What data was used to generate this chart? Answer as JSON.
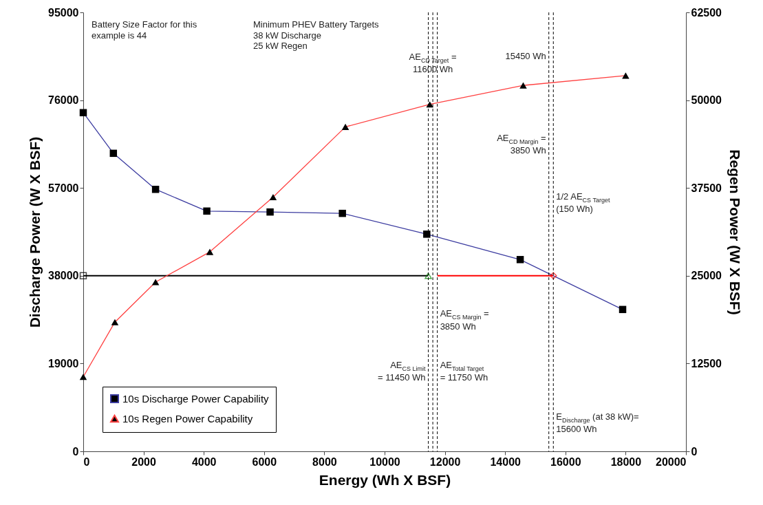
{
  "chart_data": {
    "type": "line",
    "xlabel": "Energy (Wh X BSF)",
    "ylabel": "Discharge Power (W X BSF)",
    "y2label": "Regen Power (W X BSF)",
    "xlim": [
      0,
      20000
    ],
    "xticks": [
      0,
      2000,
      4000,
      6000,
      8000,
      10000,
      12000,
      14000,
      16000,
      18000,
      20000
    ],
    "ylim": [
      0,
      95000
    ],
    "yticks": [
      0,
      19000,
      38000,
      57000,
      76000,
      95000
    ],
    "y2lim": [
      0,
      62500
    ],
    "y2ticks": [
      0,
      12500,
      25000,
      37500,
      50000,
      62500
    ],
    "grid": false,
    "legend": "bottom left",
    "series": [
      {
        "name": "10s Discharge Power Capability",
        "color": "#3c3ca0",
        "marker": "square",
        "x": [
          0,
          1000,
          2400,
          4100,
          6200,
          8600,
          11400,
          14500,
          17900
        ],
        "values": [
          73300,
          64500,
          56700,
          52000,
          51800,
          51500,
          47000,
          41500,
          30700
        ]
      },
      {
        "name": "10s Regen Power Capability",
        "color": "#ff4040",
        "marker": "triangle",
        "axis": "y2",
        "x": [
          0,
          1050,
          2400,
          4200,
          6300,
          8700,
          11500,
          14600,
          18000
        ],
        "values": [
          10600,
          18400,
          24100,
          28400,
          36200,
          46200,
          49400,
          52100,
          53500
        ]
      },
      {
        "type": "line",
        "color": "#000000",
        "marker": "none",
        "x": [
          0,
          11450
        ],
        "values": [
          38000,
          38000
        ]
      },
      {
        "type": "line",
        "color": "#ff0000",
        "marker": "none",
        "x": [
          11750,
          15600
        ],
        "values": [
          38000,
          38000
        ]
      },
      {
        "type": "scatter",
        "color": "#000000",
        "marker": "square",
        "x": [
          0
        ],
        "values": [
          38000
        ]
      },
      {
        "type": "scatter",
        "color": "#008000",
        "marker": "triangle",
        "x": [
          11450
        ],
        "values": [
          38000
        ]
      },
      {
        "type": "scatter",
        "color": "#ff0000",
        "marker": "diamond",
        "x": [
          15600
        ],
        "values": [
          38000
        ]
      }
    ],
    "ref_lines": [
      {
        "axis": "x",
        "value": 11450,
        "color": "#000000",
        "line_style": "dashed"
      },
      {
        "axis": "x",
        "value": 11600,
        "color": "#000000",
        "line_style": "dashed"
      },
      {
        "axis": "x",
        "value": 11750,
        "color": "#000000",
        "line_style": "dashed"
      },
      {
        "axis": "x",
        "value": 15450,
        "color": "#000000",
        "line_style": "dashed"
      },
      {
        "axis": "x",
        "value": 15600,
        "color": "#000000",
        "line_style": "dashed"
      }
    ],
    "annotations": [
      "Battery Size Factor for this\nexample is 44",
      "Minimum PHEV Battery Targets\n38 kW Discharge\n25 kW Regen",
      {
        "text": "AE$_{CD Target}$ =\n11600 Wh",
        "x": 11600,
        "y": 84000
      },
      {
        "text": "15450 Wh",
        "x": 15450,
        "y": 85500
      },
      {
        "text": "AE$_{CD Margin}$ =\n3850 Wh",
        "x": 15450,
        "y": 66400
      },
      {
        "text": "1/2 AE$_{CS Target}$\n(150 Wh)",
        "x": 15600,
        "y": 53800
      },
      {
        "text": "AE$_{CS Margin}$ =\n3850 Wh",
        "x": 11750,
        "y": 28400
      },
      {
        "text": "AE$_{CS Limit}$\n= 11450 Wh",
        "x": 11450,
        "y": 17300
      },
      {
        "text": "AE$_{Total Target}$\n= 11750 Wh",
        "x": 11750,
        "y": 17300
      },
      {
        "text": "E$_{Discharge}$ (at 38 kW)=\n15600 Wh",
        "x": 15600,
        "y": 6100
      }
    ]
  }
}
